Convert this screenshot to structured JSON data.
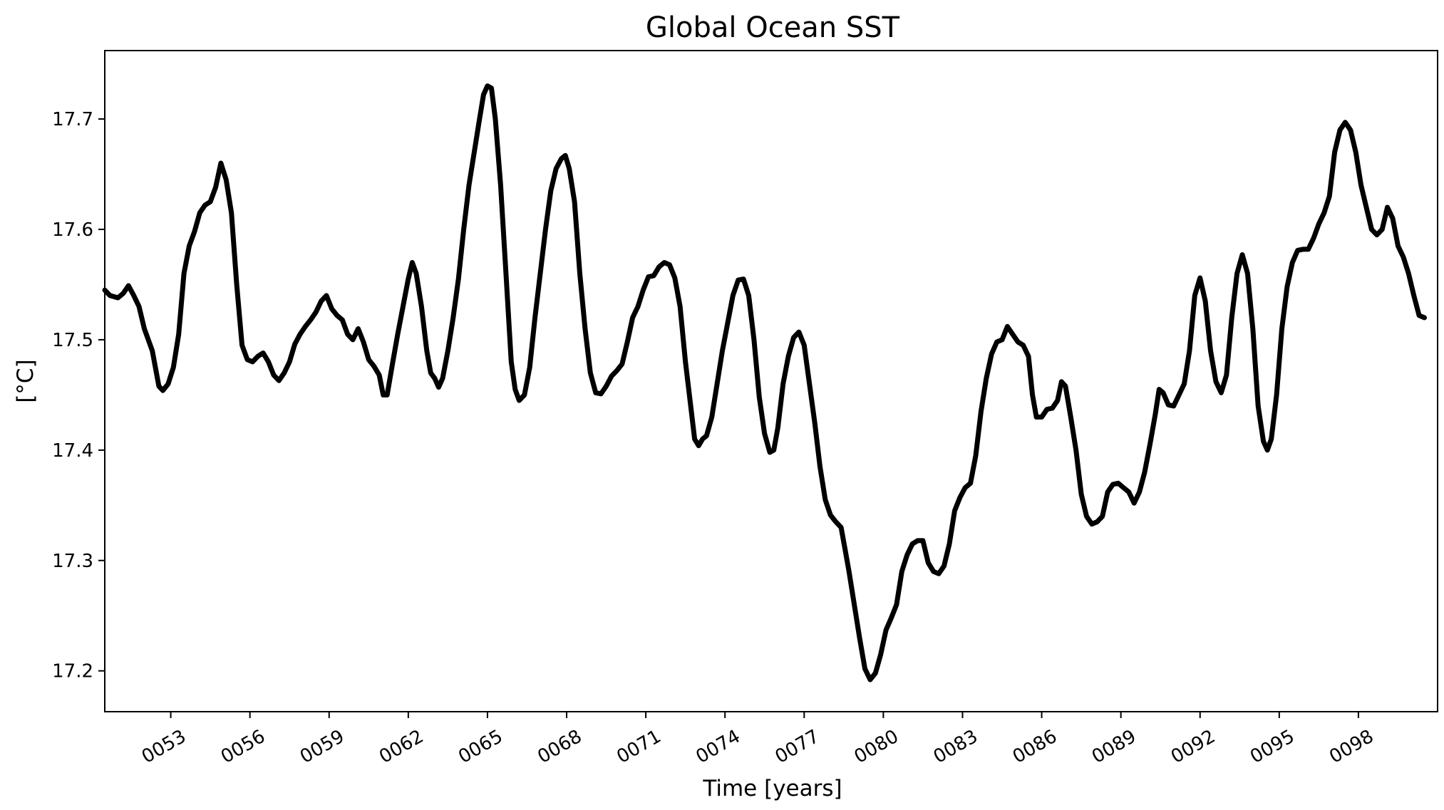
{
  "chart_data": {
    "type": "line",
    "title": "Global Ocean SST",
    "xlabel": "Time [years]",
    "ylabel": "[°C]",
    "xlim": [
      50.5,
      101.0
    ],
    "ylim": [
      17.163,
      17.762
    ],
    "grid": false,
    "line_color": "#000000",
    "xticks": [
      {
        "value": 53,
        "label": "0053"
      },
      {
        "value": 56,
        "label": "0056"
      },
      {
        "value": 59,
        "label": "0059"
      },
      {
        "value": 62,
        "label": "0062"
      },
      {
        "value": 65,
        "label": "0065"
      },
      {
        "value": 68,
        "label": "0068"
      },
      {
        "value": 71,
        "label": "0071"
      },
      {
        "value": 74,
        "label": "0074"
      },
      {
        "value": 77,
        "label": "0077"
      },
      {
        "value": 80,
        "label": "0080"
      },
      {
        "value": 83,
        "label": "0083"
      },
      {
        "value": 86,
        "label": "0086"
      },
      {
        "value": 89,
        "label": "0089"
      },
      {
        "value": 92,
        "label": "0092"
      },
      {
        "value": 95,
        "label": "0095"
      },
      {
        "value": 98,
        "label": "0098"
      }
    ],
    "yticks": [
      {
        "value": 17.2,
        "label": "17.2"
      },
      {
        "value": 17.3,
        "label": "17.3"
      },
      {
        "value": 17.4,
        "label": "17.4"
      },
      {
        "value": 17.5,
        "label": "17.5"
      },
      {
        "value": 17.6,
        "label": "17.6"
      },
      {
        "value": 17.7,
        "label": "17.7"
      }
    ],
    "series": [
      {
        "points": [
          [
            50.5,
            17.545
          ],
          [
            50.7,
            17.54
          ],
          [
            51.0,
            17.538
          ],
          [
            51.2,
            17.542
          ],
          [
            51.4,
            17.549
          ],
          [
            51.6,
            17.54
          ],
          [
            51.8,
            17.53
          ],
          [
            52.0,
            17.51
          ],
          [
            52.3,
            17.49
          ],
          [
            52.55,
            17.458
          ],
          [
            52.7,
            17.454
          ],
          [
            52.9,
            17.46
          ],
          [
            53.1,
            17.475
          ],
          [
            53.3,
            17.505
          ],
          [
            53.5,
            17.56
          ],
          [
            53.7,
            17.585
          ],
          [
            53.9,
            17.598
          ],
          [
            54.1,
            17.615
          ],
          [
            54.3,
            17.622
          ],
          [
            54.5,
            17.625
          ],
          [
            54.7,
            17.638
          ],
          [
            54.9,
            17.66
          ],
          [
            55.1,
            17.645
          ],
          [
            55.3,
            17.615
          ],
          [
            55.5,
            17.55
          ],
          [
            55.7,
            17.495
          ],
          [
            55.9,
            17.482
          ],
          [
            56.1,
            17.48
          ],
          [
            56.3,
            17.485
          ],
          [
            56.5,
            17.488
          ],
          [
            56.7,
            17.48
          ],
          [
            56.9,
            17.468
          ],
          [
            57.1,
            17.463
          ],
          [
            57.3,
            17.47
          ],
          [
            57.5,
            17.48
          ],
          [
            57.7,
            17.496
          ],
          [
            57.9,
            17.505
          ],
          [
            58.1,
            17.512
          ],
          [
            58.3,
            17.518
          ],
          [
            58.5,
            17.525
          ],
          [
            58.7,
            17.535
          ],
          [
            58.9,
            17.54
          ],
          [
            59.1,
            17.528
          ],
          [
            59.3,
            17.522
          ],
          [
            59.5,
            17.518
          ],
          [
            59.7,
            17.505
          ],
          [
            59.9,
            17.5
          ],
          [
            60.1,
            17.51
          ],
          [
            60.3,
            17.498
          ],
          [
            60.5,
            17.482
          ],
          [
            60.7,
            17.476
          ],
          [
            60.9,
            17.468
          ],
          [
            61.05,
            17.45
          ],
          [
            61.2,
            17.45
          ],
          [
            61.4,
            17.478
          ],
          [
            61.6,
            17.505
          ],
          [
            61.8,
            17.53
          ],
          [
            62.0,
            17.555
          ],
          [
            62.15,
            17.57
          ],
          [
            62.3,
            17.56
          ],
          [
            62.5,
            17.53
          ],
          [
            62.7,
            17.49
          ],
          [
            62.85,
            17.47
          ],
          [
            63.0,
            17.465
          ],
          [
            63.15,
            17.457
          ],
          [
            63.3,
            17.465
          ],
          [
            63.5,
            17.49
          ],
          [
            63.7,
            17.52
          ],
          [
            63.9,
            17.555
          ],
          [
            64.1,
            17.6
          ],
          [
            64.3,
            17.64
          ],
          [
            64.5,
            17.67
          ],
          [
            64.7,
            17.7
          ],
          [
            64.85,
            17.722
          ],
          [
            65.0,
            17.73
          ],
          [
            65.15,
            17.728
          ],
          [
            65.3,
            17.7
          ],
          [
            65.5,
            17.64
          ],
          [
            65.7,
            17.56
          ],
          [
            65.9,
            17.48
          ],
          [
            66.05,
            17.455
          ],
          [
            66.2,
            17.445
          ],
          [
            66.4,
            17.45
          ],
          [
            66.6,
            17.475
          ],
          [
            66.8,
            17.52
          ],
          [
            67.0,
            17.56
          ],
          [
            67.2,
            17.6
          ],
          [
            67.4,
            17.635
          ],
          [
            67.6,
            17.655
          ],
          [
            67.8,
            17.664
          ],
          [
            67.95,
            17.667
          ],
          [
            68.1,
            17.655
          ],
          [
            68.3,
            17.625
          ],
          [
            68.5,
            17.56
          ],
          [
            68.7,
            17.51
          ],
          [
            68.9,
            17.47
          ],
          [
            69.1,
            17.452
          ],
          [
            69.3,
            17.451
          ],
          [
            69.5,
            17.458
          ],
          [
            69.7,
            17.467
          ],
          [
            69.9,
            17.472
          ],
          [
            70.1,
            17.478
          ],
          [
            70.3,
            17.498
          ],
          [
            70.5,
            17.52
          ],
          [
            70.7,
            17.53
          ],
          [
            70.9,
            17.545
          ],
          [
            71.1,
            17.557
          ],
          [
            71.3,
            17.558
          ],
          [
            71.5,
            17.566
          ],
          [
            71.7,
            17.57
          ],
          [
            71.9,
            17.568
          ],
          [
            72.1,
            17.556
          ],
          [
            72.3,
            17.53
          ],
          [
            72.5,
            17.48
          ],
          [
            72.7,
            17.44
          ],
          [
            72.85,
            17.41
          ],
          [
            73.0,
            17.404
          ],
          [
            73.15,
            17.41
          ],
          [
            73.3,
            17.413
          ],
          [
            73.5,
            17.43
          ],
          [
            73.7,
            17.46
          ],
          [
            73.9,
            17.49
          ],
          [
            74.1,
            17.515
          ],
          [
            74.3,
            17.54
          ],
          [
            74.5,
            17.554
          ],
          [
            74.7,
            17.555
          ],
          [
            74.9,
            17.54
          ],
          [
            75.1,
            17.5
          ],
          [
            75.3,
            17.448
          ],
          [
            75.5,
            17.415
          ],
          [
            75.7,
            17.398
          ],
          [
            75.85,
            17.4
          ],
          [
            76.0,
            17.42
          ],
          [
            76.2,
            17.46
          ],
          [
            76.4,
            17.485
          ],
          [
            76.6,
            17.502
          ],
          [
            76.8,
            17.507
          ],
          [
            77.0,
            17.495
          ],
          [
            77.2,
            17.46
          ],
          [
            77.4,
            17.425
          ],
          [
            77.6,
            17.385
          ],
          [
            77.8,
            17.355
          ],
          [
            78.0,
            17.341
          ],
          [
            78.2,
            17.335
          ],
          [
            78.4,
            17.33
          ],
          [
            78.55,
            17.31
          ],
          [
            78.7,
            17.29
          ],
          [
            78.9,
            17.26
          ],
          [
            79.1,
            17.23
          ],
          [
            79.3,
            17.202
          ],
          [
            79.5,
            17.192
          ],
          [
            79.7,
            17.198
          ],
          [
            79.9,
            17.215
          ],
          [
            80.1,
            17.237
          ],
          [
            80.3,
            17.248
          ],
          [
            80.5,
            17.26
          ],
          [
            80.7,
            17.29
          ],
          [
            80.9,
            17.305
          ],
          [
            81.1,
            17.315
          ],
          [
            81.3,
            17.318
          ],
          [
            81.5,
            17.318
          ],
          [
            81.7,
            17.298
          ],
          [
            81.9,
            17.29
          ],
          [
            82.1,
            17.288
          ],
          [
            82.3,
            17.295
          ],
          [
            82.5,
            17.315
          ],
          [
            82.7,
            17.345
          ],
          [
            82.9,
            17.357
          ],
          [
            83.1,
            17.366
          ],
          [
            83.3,
            17.37
          ],
          [
            83.5,
            17.395
          ],
          [
            83.7,
            17.435
          ],
          [
            83.9,
            17.465
          ],
          [
            84.1,
            17.487
          ],
          [
            84.3,
            17.498
          ],
          [
            84.5,
            17.5
          ],
          [
            84.7,
            17.512
          ],
          [
            84.9,
            17.505
          ],
          [
            85.1,
            17.498
          ],
          [
            85.3,
            17.495
          ],
          [
            85.5,
            17.485
          ],
          [
            85.65,
            17.45
          ],
          [
            85.8,
            17.43
          ],
          [
            86.0,
            17.43
          ],
          [
            86.2,
            17.437
          ],
          [
            86.4,
            17.438
          ],
          [
            86.6,
            17.445
          ],
          [
            86.75,
            17.462
          ],
          [
            86.9,
            17.458
          ],
          [
            87.1,
            17.43
          ],
          [
            87.3,
            17.4
          ],
          [
            87.5,
            17.36
          ],
          [
            87.7,
            17.34
          ],
          [
            87.9,
            17.333
          ],
          [
            88.1,
            17.335
          ],
          [
            88.3,
            17.34
          ],
          [
            88.5,
            17.362
          ],
          [
            88.7,
            17.369
          ],
          [
            88.9,
            17.37
          ],
          [
            89.1,
            17.366
          ],
          [
            89.3,
            17.362
          ],
          [
            89.5,
            17.352
          ],
          [
            89.7,
            17.362
          ],
          [
            89.9,
            17.38
          ],
          [
            90.1,
            17.405
          ],
          [
            90.3,
            17.432
          ],
          [
            90.45,
            17.455
          ],
          [
            90.6,
            17.452
          ],
          [
            90.8,
            17.441
          ],
          [
            91.0,
            17.44
          ],
          [
            91.2,
            17.45
          ],
          [
            91.4,
            17.46
          ],
          [
            91.6,
            17.49
          ],
          [
            91.8,
            17.54
          ],
          [
            92.0,
            17.556
          ],
          [
            92.2,
            17.535
          ],
          [
            92.4,
            17.49
          ],
          [
            92.6,
            17.462
          ],
          [
            92.8,
            17.452
          ],
          [
            93.0,
            17.468
          ],
          [
            93.2,
            17.52
          ],
          [
            93.4,
            17.56
          ],
          [
            93.6,
            17.577
          ],
          [
            93.8,
            17.56
          ],
          [
            94.0,
            17.51
          ],
          [
            94.2,
            17.44
          ],
          [
            94.4,
            17.408
          ],
          [
            94.55,
            17.4
          ],
          [
            94.7,
            17.41
          ],
          [
            94.9,
            17.45
          ],
          [
            95.1,
            17.51
          ],
          [
            95.3,
            17.548
          ],
          [
            95.5,
            17.57
          ],
          [
            95.7,
            17.581
          ],
          [
            95.9,
            17.582
          ],
          [
            96.1,
            17.582
          ],
          [
            96.3,
            17.592
          ],
          [
            96.5,
            17.605
          ],
          [
            96.7,
            17.615
          ],
          [
            96.9,
            17.63
          ],
          [
            97.1,
            17.67
          ],
          [
            97.3,
            17.69
          ],
          [
            97.5,
            17.697
          ],
          [
            97.7,
            17.69
          ],
          [
            97.9,
            17.67
          ],
          [
            98.1,
            17.64
          ],
          [
            98.3,
            17.62
          ],
          [
            98.5,
            17.6
          ],
          [
            98.7,
            17.595
          ],
          [
            98.9,
            17.6
          ],
          [
            99.1,
            17.62
          ],
          [
            99.3,
            17.61
          ],
          [
            99.5,
            17.585
          ],
          [
            99.7,
            17.575
          ],
          [
            99.9,
            17.56
          ],
          [
            100.1,
            17.54
          ],
          [
            100.3,
            17.522
          ],
          [
            100.5,
            17.52
          ]
        ]
      }
    ]
  }
}
